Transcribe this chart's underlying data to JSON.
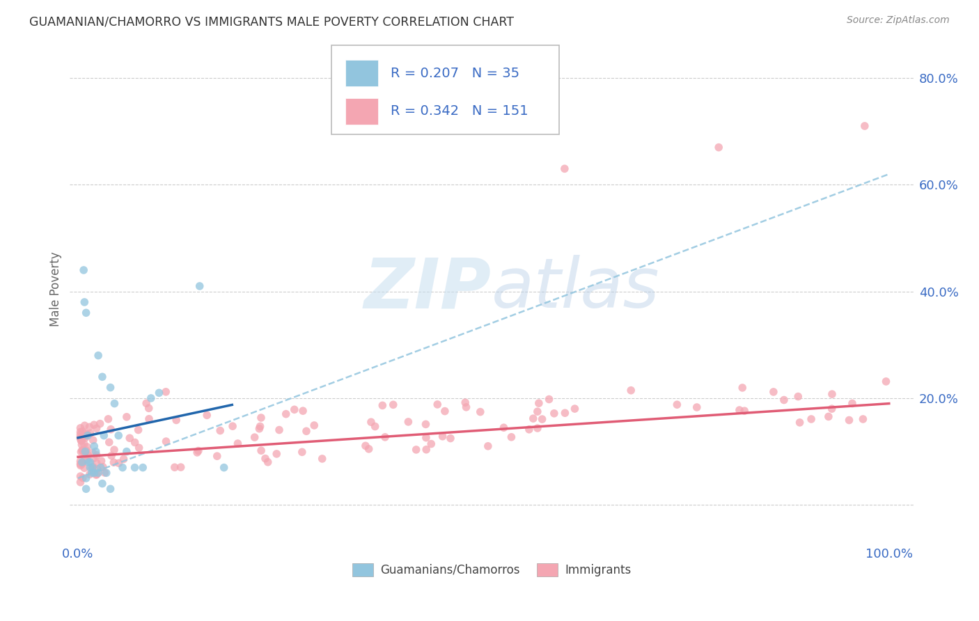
{
  "title": "GUAMANIAN/CHAMORRO VS IMMIGRANTS MALE POVERTY CORRELATION CHART",
  "source": "Source: ZipAtlas.com",
  "ylabel": "Male Poverty",
  "ytick_vals": [
    0.0,
    0.2,
    0.4,
    0.6,
    0.8
  ],
  "ytick_labels": [
    "",
    "20.0%",
    "40.0%",
    "60.0%",
    "80.0%"
  ],
  "xtick_labels": [
    "0.0%",
    "100.0%"
  ],
  "xlim": [
    -0.01,
    1.03
  ],
  "ylim": [
    -0.07,
    0.88
  ],
  "watermark": "ZIPatlas",
  "legend_r1": "0.207",
  "legend_n1": "35",
  "legend_r2": "0.342",
  "legend_n2": "151",
  "blue_scatter_color": "#92c5de",
  "pink_scatter_color": "#f4a6b2",
  "blue_line_color": "#2166ac",
  "blue_dash_color": "#92c5de",
  "pink_line_color": "#e05c75",
  "background_color": "#ffffff",
  "grid_color": "#cccccc",
  "tick_label_color": "#3a6bc4",
  "title_color": "#333333",
  "source_color": "#888888",
  "legend_text_color": "#3a6bc4",
  "bottom_label_color": "#444444"
}
